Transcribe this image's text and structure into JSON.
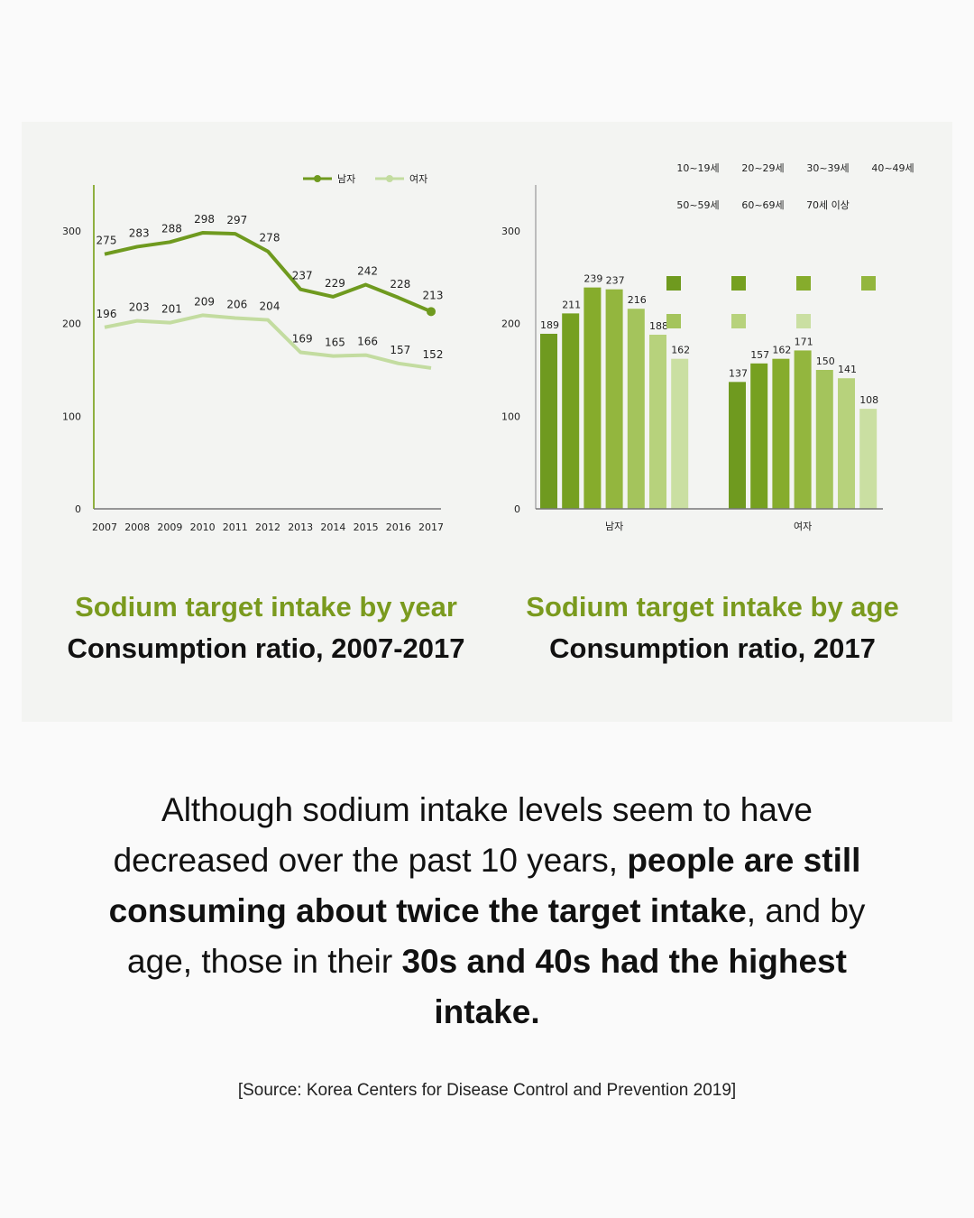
{
  "chart_data": [
    {
      "type": "line",
      "title": "Sodium target intake by year",
      "subtitle": "Consumption ratio, 2007-2017",
      "x": [
        "2007",
        "2008",
        "2009",
        "2010",
        "2011",
        "2012",
        "2013",
        "2014",
        "2015",
        "2016",
        "2017"
      ],
      "series": [
        {
          "name": "남자",
          "values": [
            275,
            283,
            288,
            298,
            297,
            278,
            237,
            229,
            242,
            228,
            213
          ],
          "color": "#6f9a1f"
        },
        {
          "name": "여자",
          "values": [
            196,
            203,
            201,
            209,
            206,
            204,
            169,
            165,
            166,
            157,
            152
          ],
          "color": "#c3dca0"
        }
      ],
      "y_ticks": [
        "300",
        "200",
        "100",
        "0"
      ],
      "ylim": [
        0,
        300
      ],
      "grid": false,
      "legend": "top-right"
    },
    {
      "type": "bar",
      "title": "Sodium target intake by age",
      "subtitle": "Consumption ratio, 2017",
      "categories": [
        "남자",
        "여자"
      ],
      "series": [
        {
          "name": "10~19세",
          "values": [
            189,
            137
          ],
          "color": "#6f9a1f"
        },
        {
          "name": "20~29세",
          "values": [
            211,
            157
          ],
          "color": "#76a020"
        },
        {
          "name": "30~39세",
          "values": [
            239,
            162
          ],
          "color": "#86ac2c"
        },
        {
          "name": "40~49세",
          "values": [
            237,
            171
          ],
          "color": "#93b63e"
        },
        {
          "name": "50~59세",
          "values": [
            216,
            150
          ],
          "color": "#a4c45c"
        },
        {
          "name": "60~69세",
          "values": [
            188,
            141
          ],
          "color": "#b7d27c"
        },
        {
          "name": "70세 이상",
          "values": [
            162,
            108
          ],
          "color": "#cadfa2"
        }
      ],
      "y_ticks": [
        "300",
        "200",
        "100",
        "0"
      ],
      "ylim": [
        0,
        300
      ],
      "grid": false,
      "legend": "top-right"
    }
  ],
  "summary": {
    "p1": "Although sodium intake levels seem to have decreased over the past 10 years, ",
    "b1": "people are still consuming about twice the target intake",
    "p2": ", and by age, those in their ",
    "b2": "30s and 40s had the highest intake."
  },
  "source": "[Source: Korea Centers for Disease Control and Prevention 2019]"
}
